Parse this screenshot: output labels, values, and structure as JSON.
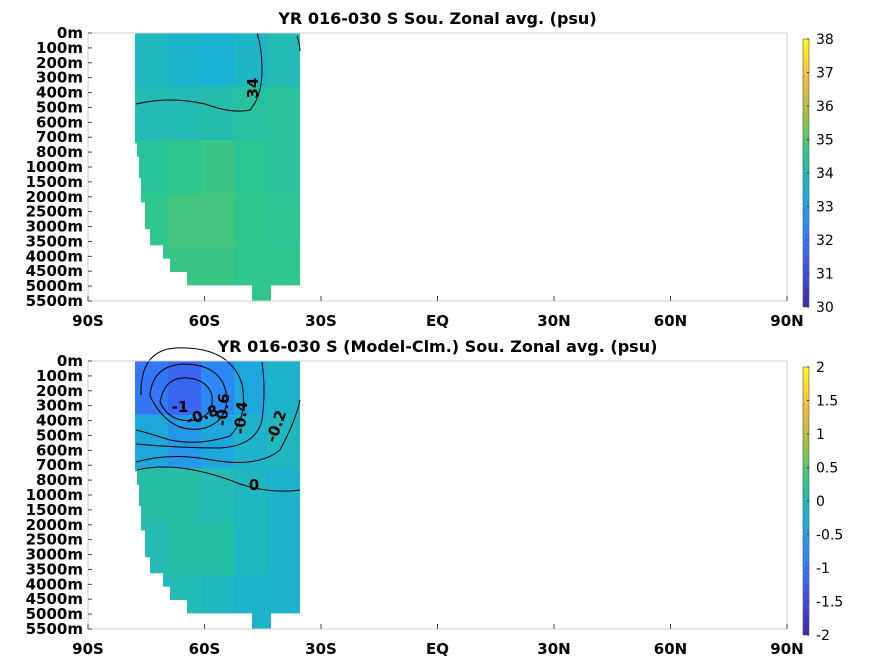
{
  "chart_data": [
    {
      "type": "heatmap",
      "title": "YR 016-030 S Sou. Zonal avg. (psu)",
      "x_tick_labels": [
        "90S",
        "60S",
        "30S",
        "EQ",
        "30N",
        "60N",
        "90N"
      ],
      "y_tick_labels": [
        "0m",
        "100m",
        "200m",
        "300m",
        "400m",
        "500m",
        "600m",
        "700m",
        "800m",
        "1000m",
        "1500m",
        "2000m",
        "2500m",
        "3000m",
        "3500m",
        "4000m",
        "4500m",
        "5000m",
        "5500m"
      ],
      "xlim": [
        -90,
        90
      ],
      "colorbar": {
        "range": [
          30,
          38
        ],
        "tick_labels": [
          "38",
          "37",
          "36",
          "35",
          "34",
          "33",
          "32",
          "31",
          "30"
        ]
      },
      "colormap": [
        "#3e26a8",
        "#4250e9",
        "#2e84f8",
        "#1ab0d6",
        "#2cc68f",
        "#a5c03f",
        "#f7bb3b",
        "#f9fb15"
      ],
      "contour_labels": [
        "34"
      ],
      "data_extent_lat": [
        -77,
        -35
      ],
      "field_rows": [
        [
          33.8,
          33.6,
          33.5,
          33.7,
          34.0
        ],
        [
          34.0,
          34.0,
          34.1,
          34.3,
          34.4
        ],
        [
          34.4,
          34.6,
          34.7,
          34.5,
          34.4
        ],
        [
          34.6,
          34.8,
          34.8,
          34.6,
          34.5
        ],
        [
          34.6,
          34.7,
          34.7,
          34.6,
          34.6
        ]
      ]
    },
    {
      "type": "heatmap",
      "title": "YR 016-030 S (Model-Clm.) Sou. Zonal avg. (psu)",
      "x_tick_labels": [
        "90S",
        "60S",
        "30S",
        "EQ",
        "30N",
        "60N",
        "90N"
      ],
      "y_tick_labels": [
        "0m",
        "100m",
        "200m",
        "300m",
        "400m",
        "500m",
        "600m",
        "700m",
        "800m",
        "1000m",
        "1500m",
        "2000m",
        "2500m",
        "3000m",
        "3500m",
        "4000m",
        "4500m",
        "5000m",
        "5500m"
      ],
      "xlim": [
        -90,
        90
      ],
      "colorbar": {
        "range": [
          -2,
          2
        ],
        "tick_labels": [
          "2",
          "1.5",
          "1",
          "0.5",
          "0",
          "-0.5",
          "-1",
          "-1.5",
          "-2"
        ]
      },
      "colormap": [
        "#3e26a8",
        "#4250e9",
        "#2e84f8",
        "#1ab0d6",
        "#2cc68f",
        "#a5c03f",
        "#f7bb3b",
        "#f9fb15"
      ],
      "contour_labels": [
        "-1",
        "-0.8",
        "-0.6",
        "-0.4",
        "-0.2",
        "0"
      ],
      "data_extent_lat": [
        -77,
        -35
      ],
      "field_rows": [
        [
          -1.0,
          -1.2,
          -0.8,
          -0.4,
          -0.2
        ],
        [
          -0.4,
          -0.6,
          -0.4,
          -0.2,
          -0.1
        ],
        [
          0.1,
          0.1,
          0.0,
          -0.1,
          -0.2
        ],
        [
          0.0,
          0.1,
          0.1,
          -0.1,
          -0.2
        ],
        [
          -0.1,
          0.0,
          -0.1,
          -0.2,
          -0.2
        ]
      ]
    }
  ]
}
